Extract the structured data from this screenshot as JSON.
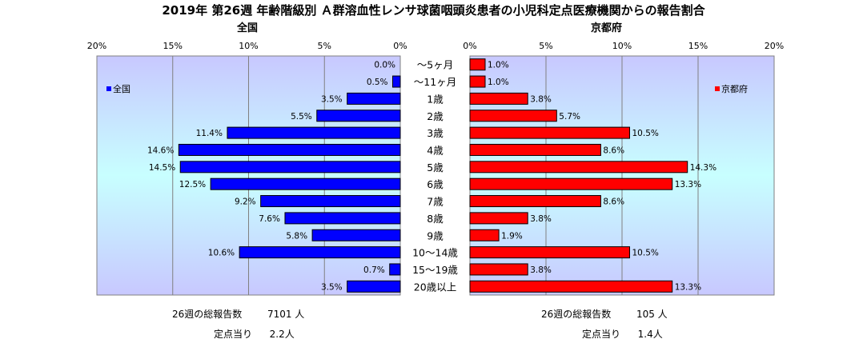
{
  "title": "2019年 第26週 年齢階級別 Ａ群溶血性レンサ球菌咽頭炎患者の小児科定点医療機関からの報告割合",
  "colors": {
    "left_bar": "#0000ff",
    "right_bar": "#ff0000",
    "plot_bg_top": "#c8c8ff",
    "plot_bg_mid": "#c8ffff"
  },
  "chart_data": [
    {
      "type": "bar",
      "orientation": "horizontal",
      "direction": "reversed",
      "title": "全国",
      "legend": "全国",
      "legend_position": "top-left",
      "xlim": [
        0,
        20
      ],
      "xticks": [
        "20%",
        "15%",
        "10%",
        "5%",
        "0%"
      ],
      "grid": true,
      "categories": [
        "～5ヶ月",
        "～11ヶ月",
        "1歳",
        "2歳",
        "3歳",
        "4歳",
        "5歳",
        "6歳",
        "7歳",
        "8歳",
        "9歳",
        "10～14歳",
        "15～19歳",
        "20歳以上"
      ],
      "values": [
        0.0,
        0.5,
        3.5,
        5.5,
        11.4,
        14.6,
        14.5,
        12.5,
        9.2,
        7.6,
        5.8,
        10.6,
        0.7,
        3.5
      ],
      "labels": [
        "0.0%",
        "0.5%",
        "3.5%",
        "5.5%",
        "11.4%",
        "14.6%",
        "14.5%",
        "12.5%",
        "9.2%",
        "7.6%",
        "5.8%",
        "10.6%",
        "0.7%",
        "3.5%"
      ]
    },
    {
      "type": "bar",
      "orientation": "horizontal",
      "title": "京都府",
      "legend": "京都府",
      "legend_position": "top-right",
      "xlim": [
        0,
        20
      ],
      "xticks": [
        "0%",
        "5%",
        "10%",
        "15%",
        "20%"
      ],
      "grid": true,
      "categories": [
        "～5ヶ月",
        "～11ヶ月",
        "1歳",
        "2歳",
        "3歳",
        "4歳",
        "5歳",
        "6歳",
        "7歳",
        "8歳",
        "9歳",
        "10～14歳",
        "15～19歳",
        "20歳以上"
      ],
      "values": [
        1.0,
        1.0,
        3.8,
        5.7,
        10.5,
        8.6,
        14.3,
        13.3,
        8.6,
        3.8,
        1.9,
        10.5,
        3.8,
        13.3
      ],
      "labels": [
        "1.0%",
        "1.0%",
        "3.8%",
        "5.7%",
        "10.5%",
        "8.6%",
        "14.3%",
        "13.3%",
        "8.6%",
        "3.8%",
        "1.9%",
        "10.5%",
        "3.8%",
        "13.3%"
      ]
    }
  ],
  "footer": {
    "left": {
      "reports_label": "26週の総報告数",
      "reports_value": "7101 人",
      "per_label": "定点当り",
      "per_value": "2.2人"
    },
    "right": {
      "reports_label": "26週の総報告数",
      "reports_value": "105 人",
      "per_label": "定点当り",
      "per_value": "1.4人"
    }
  }
}
